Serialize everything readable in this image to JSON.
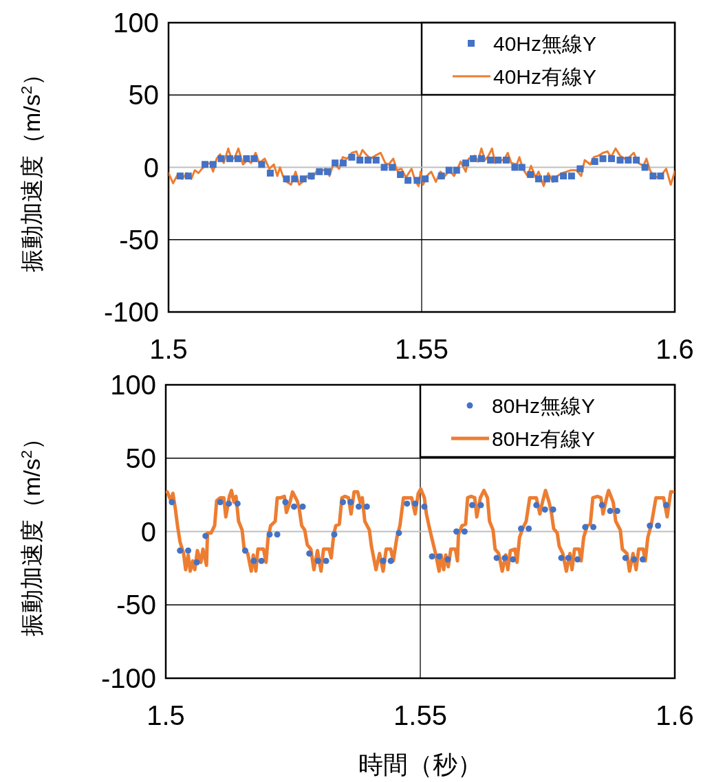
{
  "chart_data": [
    {
      "type": "line",
      "ylabel": "振動加速度（m/s$^{2}$）",
      "xlim": [
        1.5,
        1.6
      ],
      "xticks": [
        1.5,
        1.55,
        1.6
      ],
      "ylim": [
        -100,
        100
      ],
      "yticks": [
        -100,
        -50,
        0,
        50,
        100
      ],
      "grid": true,
      "legend": "top right",
      "series": [
        {
          "name": "40Hz無線Y",
          "type": "scatter",
          "marker": "square",
          "color": "#4472c4",
          "x": [
            1.5023,
            1.5039,
            1.5072,
            1.5088,
            1.5104,
            1.5121,
            1.5137,
            1.5154,
            1.5169,
            1.5184,
            1.5201,
            1.5233,
            1.5249,
            1.5266,
            1.5282,
            1.5298,
            1.5314,
            1.5329,
            1.5345,
            1.5362,
            1.5378,
            1.5394,
            1.541,
            1.5426,
            1.5442,
            1.5458,
            1.5473,
            1.5491,
            1.5507,
            1.5539,
            1.5554,
            1.5569,
            1.5587,
            1.5602,
            1.5618,
            1.5636,
            1.5651,
            1.5667,
            1.5684,
            1.5698,
            1.5715,
            1.5731,
            1.5747,
            1.5763,
            1.578,
            1.5796,
            1.5813,
            1.5842,
            1.5858,
            1.5875,
            1.5892,
            1.5908,
            1.5924,
            1.5941,
            1.5957,
            1.5972
          ],
          "values": [
            -6,
            -6,
            2,
            2,
            6,
            6,
            6,
            6,
            6,
            2,
            -4,
            -8,
            -8,
            -8,
            -6,
            -3,
            -3,
            3,
            3,
            7,
            5,
            5,
            5,
            0,
            0,
            -5,
            -9,
            -9,
            -8,
            -6,
            -2,
            -2,
            3,
            6,
            6,
            5,
            5,
            5,
            0,
            0,
            -5,
            -8,
            -8,
            -8,
            -6,
            -6,
            -1,
            4,
            6,
            6,
            5,
            5,
            5,
            0,
            -6,
            -6
          ]
        },
        {
          "name": "40Hz有線Y",
          "type": "line",
          "color": "#ed7d31",
          "x": [
            1.5,
            1.5009,
            1.5018,
            1.5027,
            1.5036,
            1.5045,
            1.5052,
            1.5059,
            1.5066,
            1.5075,
            1.5082,
            1.5088,
            1.5095,
            1.5102,
            1.5109,
            1.5118,
            1.5125,
            1.5131,
            1.5138,
            1.5147,
            1.5156,
            1.5163,
            1.5172,
            1.5179,
            1.519,
            1.5199,
            1.5208,
            1.5215,
            1.522,
            1.5226,
            1.5233,
            1.5242,
            1.5251,
            1.5258,
            1.5265,
            1.5274,
            1.5283,
            1.5292,
            1.5306,
            1.531,
            1.5318,
            1.5326,
            1.5337,
            1.5344,
            1.5353,
            1.5362,
            1.5371,
            1.5376,
            1.5383,
            1.539,
            1.5399,
            1.5408,
            1.5419,
            1.5428,
            1.5435,
            1.5444,
            1.5451,
            1.546,
            1.5469,
            1.548,
            1.5487,
            1.5494,
            1.5498,
            1.5503,
            1.551,
            1.5519,
            1.5528,
            1.5537,
            1.5546,
            1.5555,
            1.5564,
            1.5571,
            1.5577,
            1.5587,
            1.5593,
            1.5605,
            1.5611,
            1.5618,
            1.5625,
            1.5632,
            1.5639,
            1.5645,
            1.5654,
            1.5664,
            1.567,
            1.5677,
            1.5688,
            1.5693,
            1.57,
            1.5709,
            1.5716,
            1.5725,
            1.5731,
            1.5741,
            1.575,
            1.5759,
            1.5768,
            1.5777,
            1.5786,
            1.5795,
            1.5806,
            1.5815,
            1.5822,
            1.5833,
            1.584,
            1.5849,
            1.5858,
            1.5867,
            1.5874,
            1.5883,
            1.5892,
            1.5901,
            1.591,
            1.5919,
            1.5928,
            1.5938,
            1.5944,
            1.5951,
            1.596,
            1.5972,
            1.5983,
            1.5992,
            1.6
          ],
          "values": [
            -4,
            -11,
            -5,
            -8,
            -4,
            -8,
            -2,
            -4,
            -1,
            2,
            3,
            -3,
            6,
            9,
            3,
            13,
            5,
            7,
            13,
            2,
            5,
            3,
            10,
            3,
            6,
            -1,
            2,
            -6,
            0,
            -6,
            -10,
            -12,
            -3,
            -12,
            -10,
            -6,
            -8,
            -3,
            -2,
            -1,
            -6,
            3,
            -1,
            7,
            6,
            10,
            11,
            6,
            12,
            9,
            6,
            8,
            10,
            3,
            2,
            6,
            -2,
            -1,
            -7,
            -1,
            -9,
            -13,
            -3,
            -12,
            -6,
            -3,
            -10,
            -3,
            -6,
            -2,
            -6,
            -1,
            4,
            -3,
            6,
            8,
            4,
            13,
            5,
            8,
            13,
            3,
            4,
            6,
            10,
            3,
            2,
            7,
            -1,
            -6,
            1,
            -7,
            -3,
            -13,
            -4,
            -10,
            -6,
            -4,
            -3,
            -2,
            -2,
            -6,
            5,
            2,
            7,
            8,
            10,
            11,
            7,
            13,
            8,
            6,
            7,
            10,
            3,
            1,
            6,
            -2,
            -7,
            -6,
            -1,
            -12,
            -3
          ]
        }
      ]
    },
    {
      "type": "line",
      "ylabel": "振動加速度（m/s$^{2}$）",
      "xlabel": "時間（秒）",
      "xlim": [
        1.5,
        1.6
      ],
      "xticks": [
        1.5,
        1.55,
        1.6
      ],
      "ylim": [
        -100,
        100
      ],
      "yticks": [
        -100,
        -50,
        0,
        50,
        100
      ],
      "grid": true,
      "legend": "top right",
      "series": [
        {
          "name": "80Hz無線Y",
          "type": "scatter",
          "marker": "circle",
          "color": "#4472c4",
          "x": [
            1.5012,
            1.5028,
            1.5044,
            1.5061,
            1.5078,
            1.5107,
            1.5124,
            1.5141,
            1.5156,
            1.5173,
            1.5188,
            1.5204,
            1.5219,
            1.5235,
            1.5252,
            1.5269,
            1.5282,
            1.5299,
            1.5315,
            1.5331,
            1.5348,
            1.5363,
            1.5379,
            1.5395,
            1.5427,
            1.5442,
            1.5458,
            1.5474,
            1.549,
            1.5508,
            1.5523,
            1.5537,
            1.5554,
            1.5571,
            1.5587,
            1.5602,
            1.5619,
            1.565,
            1.5666,
            1.5682,
            1.5698,
            1.5713,
            1.5728,
            1.5745,
            1.5761,
            1.5777,
            1.5791,
            1.5809,
            1.5824,
            1.584,
            1.5857,
            1.5873,
            1.5887,
            1.5903,
            1.592,
            1.5937,
            1.5951,
            1.5967,
            1.5983
          ],
          "values": [
            20,
            -13,
            -13,
            -21,
            -3,
            20,
            19,
            19,
            -13,
            -20,
            -20,
            -2,
            -2,
            20,
            17,
            17,
            -15,
            -20,
            -20,
            -2,
            20,
            20,
            17,
            17,
            -20,
            -20,
            -1,
            19,
            19,
            17,
            -17,
            -17,
            -19,
            0,
            0,
            18,
            18,
            -18,
            -18,
            -19,
            2,
            2,
            18,
            15,
            15,
            -18,
            -18,
            -19,
            3,
            3,
            18,
            14,
            14,
            -18,
            -19,
            -19,
            4,
            4,
            18
          ]
        },
        {
          "name": "80Hz有線Y",
          "type": "line",
          "color": "#ed7d31",
          "x": [
            1.5003,
            1.501,
            1.5014,
            1.5019,
            1.5023,
            1.5028,
            1.5035,
            1.5039,
            1.5044,
            1.5048,
            1.5053,
            1.5057,
            1.5062,
            1.5069,
            1.5073,
            1.508,
            1.5082,
            1.5089,
            1.5096,
            1.51,
            1.5107,
            1.5114,
            1.5118,
            1.5125,
            1.5129,
            1.5134,
            1.5138,
            1.5143,
            1.515,
            1.5154,
            1.5161,
            1.5168,
            1.5172,
            1.5177,
            1.5181,
            1.5192,
            1.5197,
            1.5201,
            1.5206,
            1.5215,
            1.5219,
            1.5226,
            1.5233,
            1.5237,
            1.5244,
            1.5249,
            1.5258,
            1.5262,
            1.5267,
            1.5273,
            1.5278,
            1.5285,
            1.5291,
            1.5298,
            1.5305,
            1.531,
            1.5321,
            1.5325,
            1.533,
            1.5334,
            1.5341,
            1.5346,
            1.5352,
            1.5359,
            1.5364,
            1.537,
            1.5377,
            1.5382,
            1.5386,
            1.5391,
            1.54,
            1.5404,
            1.5413,
            1.542,
            1.5427,
            1.5433,
            1.5442,
            1.5447,
            1.5454,
            1.546,
            1.5467,
            1.5476,
            1.5483,
            1.549,
            1.5496,
            1.5501,
            1.5508,
            1.5512,
            1.5517,
            1.5523,
            1.553,
            1.5537,
            1.5541,
            1.5546,
            1.555,
            1.5555,
            1.556,
            1.5569,
            1.5573,
            1.5575,
            1.5582,
            1.5589,
            1.5593,
            1.56,
            1.5607,
            1.5611,
            1.5618,
            1.5625,
            1.5632,
            1.5636,
            1.5643,
            1.5647,
            1.5654,
            1.5661,
            1.5668,
            1.5672,
            1.5677,
            1.5686,
            1.569,
            1.5695,
            1.5701,
            1.5708,
            1.5715,
            1.5722,
            1.5728,
            1.5735,
            1.574,
            1.5746,
            1.5753,
            1.5758,
            1.5762,
            1.5769,
            1.5773,
            1.578,
            1.5787,
            1.5794,
            1.5798,
            1.5803,
            1.5812,
            1.5816,
            1.5821,
            1.5828,
            1.5834,
            1.5839,
            1.5848,
            1.5855,
            1.5859,
            1.5866,
            1.587,
            1.5879,
            1.5884,
            1.5893,
            1.5897,
            1.5906,
            1.5911,
            1.5918,
            1.5924,
            1.5929,
            1.5938,
            1.5942,
            1.5947,
            1.5954,
            1.5963,
            1.5969,
            1.5978,
            1.5985,
            1.5992,
            1.5996
          ],
          "values": [
            27,
            21,
            26,
            15,
            4,
            -7,
            -15,
            -26,
            -16,
            -27,
            -20,
            -26,
            -13,
            -21,
            -12,
            -23,
            -1,
            -1,
            4,
            21,
            23,
            23,
            10,
            24,
            28,
            20,
            24,
            7,
            1,
            -12,
            -15,
            -27,
            -16,
            -27,
            -12,
            -12,
            -21,
            -4,
            4,
            7,
            23,
            23,
            24,
            13,
            20,
            27,
            21,
            16,
            4,
            1,
            -9,
            -12,
            -26,
            -13,
            -27,
            -12,
            -12,
            -18,
            -2,
            4,
            5,
            23,
            24,
            23,
            12,
            27,
            27,
            20,
            23,
            7,
            1,
            -10,
            -26,
            -15,
            -27,
            -12,
            -12,
            -20,
            -4,
            4,
            23,
            23,
            23,
            12,
            26,
            29,
            23,
            12,
            4,
            -5,
            -15,
            -27,
            -16,
            -26,
            -16,
            -24,
            -12,
            -12,
            -20,
            -2,
            4,
            5,
            23,
            24,
            23,
            10,
            23,
            28,
            23,
            7,
            1,
            -12,
            -15,
            -27,
            -16,
            -26,
            -13,
            -12,
            -21,
            -4,
            2,
            7,
            23,
            23,
            23,
            12,
            20,
            28,
            20,
            12,
            2,
            -1,
            -10,
            -15,
            -27,
            -15,
            -26,
            -12,
            -12,
            -20,
            -4,
            4,
            5,
            23,
            24,
            23,
            12,
            23,
            28,
            20,
            7,
            1,
            -12,
            -15,
            -27,
            -15,
            -26,
            -12,
            -12,
            -20,
            -4,
            5,
            23,
            23,
            23,
            10,
            27,
            27
          ]
        }
      ]
    }
  ]
}
